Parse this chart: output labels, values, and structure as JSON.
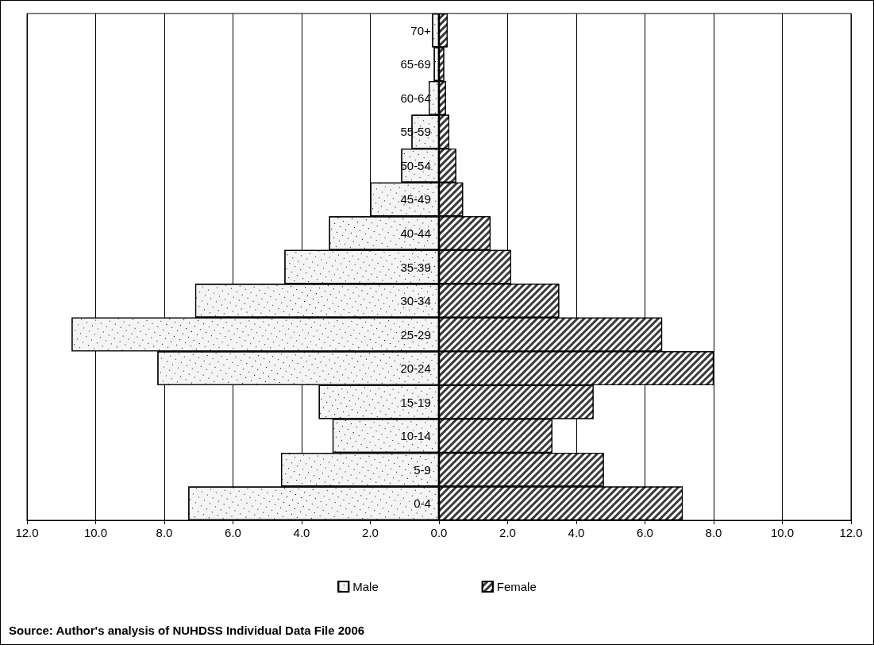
{
  "chart_data": {
    "type": "bar",
    "orientation": "horizontal",
    "stacked": true,
    "categories": [
      "70+",
      "65-69",
      "60-64",
      "55-59",
      "50-54",
      "45-49",
      "40-44",
      "35-39",
      "30-34",
      "25-29",
      "20-24",
      "15-19",
      "10-14",
      "5-9",
      "0-4"
    ],
    "series": [
      {
        "name": "Male",
        "color": "#f4f4f4",
        "values": [
          -0.2,
          -0.15,
          -0.3,
          -0.8,
          -1.1,
          -2.0,
          -3.2,
          -4.5,
          -7.1,
          -10.7,
          -8.2,
          -3.5,
          -3.1,
          -4.6,
          -7.3
        ]
      },
      {
        "name": "Female",
        "color": "#3a3a3a",
        "values": [
          0.25,
          0.15,
          0.2,
          0.3,
          0.5,
          0.7,
          1.5,
          2.1,
          3.5,
          6.5,
          8.0,
          4.5,
          3.3,
          4.8,
          7.1
        ]
      }
    ],
    "xlim": [
      -12,
      12
    ],
    "xticks": [
      {
        "value": -12,
        "label": "12.0"
      },
      {
        "value": -10,
        "label": "10.0"
      },
      {
        "value": -8,
        "label": "8.0"
      },
      {
        "value": -6,
        "label": "6.0"
      },
      {
        "value": -4,
        "label": "4.0"
      },
      {
        "value": -2,
        "label": "2.0"
      },
      {
        "value": 0,
        "label": "0.0"
      },
      {
        "value": 2,
        "label": "2.0"
      },
      {
        "value": 4,
        "label": "4.0"
      },
      {
        "value": 6,
        "label": "6.0"
      },
      {
        "value": 8,
        "label": "8.0"
      },
      {
        "value": 10,
        "label": "10.0"
      },
      {
        "value": 12,
        "label": "12.0"
      }
    ],
    "grid": "x",
    "legend": "bottom",
    "annotations": [
      "Source: Author's analysis of NUHDSS Individual Data File 2006"
    ]
  }
}
